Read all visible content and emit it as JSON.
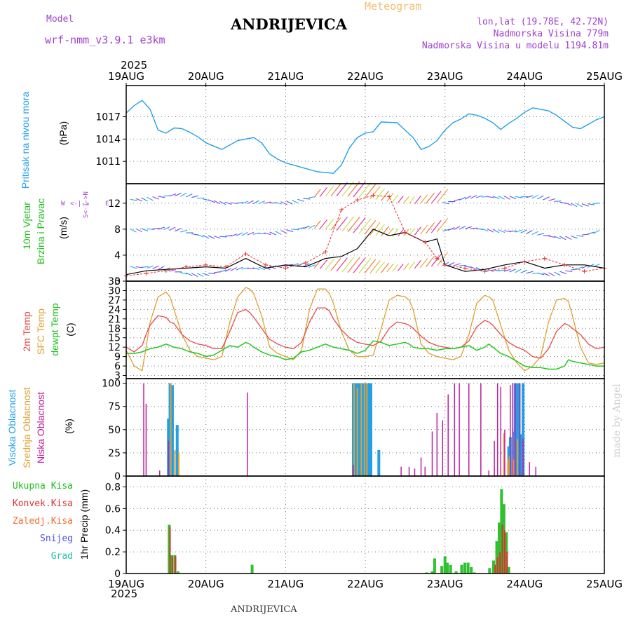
{
  "header": {
    "model_label": "Model",
    "model_name": "wrf-nmm_v3.9.1 e3km",
    "title": "ANDRIJEVICA",
    "meteogram_label": "Meteogram",
    "coords": "lon,lat (19.78E, 42.72N)",
    "elevation": "Nadmorska Visina 779m",
    "model_elevation": "Nadmorska Visina u modelu 1194.81m",
    "footer_title": "ANDRIJEVICA",
    "credit": "made by Angel"
  },
  "colors": {
    "pressure": "#22a0e8",
    "temp2m": "#e84848",
    "sfc_temp": "#e0a030",
    "dewpoint": "#20c820",
    "high_cloud": "#20a0e8",
    "mid_cloud": "#e0a030",
    "low_cloud": "#c020a0",
    "precip_total": "#30c030",
    "precip_conv": "#e03030"
  },
  "time_axis": {
    "year": "2025",
    "labels": [
      "19AUG",
      "20AUG",
      "21AUG",
      "22AUG",
      "23AUG",
      "24AUG",
      "25AUG"
    ]
  },
  "chart_data": [
    {
      "type": "line",
      "panel": "pressure",
      "ylabel_main": "Pritisak na nivou mora",
      "ylabel_unit": "(hPa)",
      "ylim": [
        1008,
        1021.2
      ],
      "yticks": [
        1011,
        1014,
        1017
      ],
      "x": [
        0,
        0.1,
        0.2,
        0.3,
        0.4,
        0.5,
        0.6,
        0.7,
        0.8,
        0.9,
        1.0,
        1.2,
        1.4,
        1.6,
        1.7,
        1.8,
        1.9,
        2.0,
        2.2,
        2.4,
        2.5,
        2.6,
        2.7,
        2.8,
        2.9,
        3.0,
        3.1,
        3.2,
        3.4,
        3.6,
        3.7,
        3.8,
        3.9,
        4.0,
        4.1,
        4.2,
        4.3,
        4.4,
        4.5,
        4.6,
        4.7,
        4.8,
        4.9,
        5.0,
        5.1,
        5.2,
        5.3,
        5.4,
        5.6,
        5.7,
        5.8,
        5.9,
        6.0
      ],
      "values": [
        1017.5,
        1018.5,
        1019.2,
        1018.0,
        1015.2,
        1014.8,
        1015.5,
        1015.4,
        1014.9,
        1014.3,
        1013.5,
        1012.6,
        1013.8,
        1014.2,
        1013.5,
        1012.0,
        1011.3,
        1010.8,
        1010.2,
        1009.6,
        1009.5,
        1009.4,
        1010.5,
        1012.8,
        1014.2,
        1014.8,
        1015.0,
        1016.3,
        1016.2,
        1014.2,
        1012.6,
        1013.0,
        1013.8,
        1015.2,
        1016.2,
        1016.7,
        1017.4,
        1017.2,
        1016.8,
        1016.2,
        1015.3,
        1016.1,
        1016.8,
        1017.6,
        1018.2,
        1018.0,
        1017.8,
        1017.2,
        1015.6,
        1015.4,
        1016.0,
        1016.6,
        1017.0
      ]
    },
    {
      "type": "line",
      "panel": "wind",
      "ylabel_main": "10m Vjetar",
      "ylabel_sub": "Brzina i Pravac",
      "ylabel_unit": "(m/s)",
      "compass_w": "W",
      "compass_e": "E",
      "compass_ns": "S<-|->N",
      "ylim": [
        0,
        15
      ],
      "yticks": [
        0,
        4,
        8,
        12
      ],
      "x": [
        0,
        0.25,
        0.5,
        0.75,
        1.0,
        1.25,
        1.5,
        1.75,
        2.0,
        2.25,
        2.5,
        2.7,
        2.9,
        3.1,
        3.3,
        3.5,
        3.75,
        3.9,
        4.0,
        4.25,
        4.5,
        4.75,
        5.0,
        5.25,
        5.5,
        5.75,
        6.0
      ],
      "series": [
        {
          "name": "wind_speed",
          "values": [
            1.0,
            1.6,
            1.8,
            2.0,
            2.2,
            2.0,
            3.5,
            2.0,
            2.5,
            2.2,
            3.5,
            3.8,
            5.0,
            8.0,
            7.0,
            7.5,
            6.0,
            6.5,
            2.5,
            1.5,
            1.8,
            2.5,
            3.0,
            2.0,
            2.5,
            2.5,
            2.0
          ]
        },
        {
          "name": "wind_gust",
          "values": [
            0.8,
            1.2,
            1.6,
            2.2,
            2.5,
            2.2,
            4.2,
            2.5,
            2.0,
            2.8,
            4.5,
            11.0,
            12.5,
            13.2,
            13.0,
            7.5,
            6.0,
            3.5,
            2.5,
            2.0,
            1.5,
            2.0,
            3.0,
            3.5,
            2.5,
            1.5,
            2.0
          ]
        }
      ]
    },
    {
      "type": "line",
      "panel": "temperature",
      "ylabel_2m": "2m Temp",
      "ylabel_sfc": "SFC Temp",
      "ylabel_dewpt": "dewpt Temp",
      "ylabel_unit": "(C)",
      "ylim": [
        2,
        33
      ],
      "yticks": [
        3,
        6,
        9,
        12,
        15,
        18,
        21,
        24,
        27,
        30,
        33
      ],
      "x": [
        0,
        0.1,
        0.2,
        0.25,
        0.3,
        0.4,
        0.5,
        0.55,
        0.6,
        0.7,
        0.8,
        0.9,
        1.0,
        1.1,
        1.2,
        1.3,
        1.4,
        1.5,
        1.55,
        1.6,
        1.7,
        1.8,
        1.9,
        2.0,
        2.1,
        2.2,
        2.3,
        2.4,
        2.5,
        2.55,
        2.6,
        2.7,
        2.8,
        2.9,
        3.0,
        3.1,
        3.2,
        3.3,
        3.4,
        3.5,
        3.55,
        3.6,
        3.7,
        3.8,
        3.9,
        4.0,
        4.1,
        4.2,
        4.3,
        4.4,
        4.5,
        4.55,
        4.6,
        4.7,
        4.8,
        4.9,
        5.0,
        5.1,
        5.2,
        5.3,
        5.4,
        5.5,
        5.55,
        5.6,
        5.7,
        5.8,
        5.9,
        6.0
      ],
      "series": [
        {
          "name": "2m Temp",
          "values": [
            12,
            10.5,
            12.5,
            16,
            19,
            22,
            21.5,
            20,
            19.5,
            16,
            14,
            13,
            12.5,
            11.5,
            11.5,
            17,
            23,
            24,
            23,
            21.5,
            18,
            14.5,
            13,
            12,
            11.5,
            13.5,
            20,
            24.5,
            24.5,
            23.5,
            21,
            17.5,
            15,
            13.5,
            13,
            12.5,
            14,
            18,
            20,
            19.5,
            19,
            18,
            15.5,
            13.5,
            12.5,
            12,
            11.5,
            12,
            14,
            18.5,
            20.5,
            20,
            19,
            16,
            13.5,
            12,
            11,
            9,
            8.5,
            11.5,
            17,
            19.5,
            19,
            18,
            16,
            13,
            11.5,
            12
          ]
        },
        {
          "name": "SFC Temp",
          "values": [
            11,
            6,
            4.5,
            12,
            20,
            28,
            29.5,
            28,
            24,
            16,
            11,
            9,
            8.5,
            8,
            9,
            20,
            28,
            31,
            30.5,
            29,
            22,
            12,
            10,
            9,
            8,
            11,
            24,
            30.5,
            30.5,
            29,
            26,
            17,
            11,
            9,
            9,
            9.5,
            18,
            27,
            28.5,
            28,
            27,
            24,
            13,
            10,
            9,
            8.5,
            8,
            9,
            16,
            26,
            28.5,
            28,
            27,
            19,
            11,
            7,
            4.5,
            6,
            9,
            20,
            27,
            27.5,
            26.5,
            22,
            12,
            7,
            6.5,
            7
          ]
        },
        {
          "name": "dewpt Temp",
          "values": [
            10,
            10,
            10.5,
            11,
            11.5,
            12,
            13,
            12.5,
            12,
            11.5,
            10.5,
            10,
            9,
            9.5,
            11,
            12.5,
            12,
            13.5,
            13,
            12,
            10.5,
            9.5,
            9,
            8,
            8.5,
            10.5,
            11,
            12,
            13,
            12.5,
            12,
            11.5,
            11,
            10,
            11,
            14,
            13.5,
            12.5,
            13,
            13.5,
            13,
            12,
            11.5,
            11.5,
            11,
            11.5,
            11.5,
            12,
            12.5,
            11,
            12,
            13,
            12,
            10,
            9,
            7.5,
            6,
            5.5,
            5.5,
            5,
            5,
            6,
            8,
            7.5,
            7,
            6.5,
            6,
            6
          ]
        }
      ]
    },
    {
      "type": "bar",
      "panel": "clouds",
      "ylabel_high": "Visoka Oblacnost",
      "ylabel_mid": "Srednja Oblacnost",
      "ylabel_low": "Niska Oblacnost",
      "ylabel_unit": "(%)",
      "ylim": [
        0,
        105
      ],
      "yticks": [
        0,
        25,
        50,
        75,
        100
      ],
      "series": [
        {
          "name": "high",
          "x": [
            0.53,
            0.55,
            0.58,
            0.64,
            2.85,
            2.88,
            2.91,
            2.94,
            2.97,
            3.0,
            3.04,
            3.07,
            3.17,
            4.8,
            4.82,
            4.86,
            4.88,
            4.9,
            4.93,
            4.96,
            4.98
          ],
          "values": [
            62,
            100,
            98,
            55,
            100,
            100,
            100,
            100,
            100,
            100,
            100,
            100,
            28,
            32,
            42,
            48,
            100,
            100,
            100,
            45,
            100
          ]
        },
        {
          "name": "mid",
          "x": [
            0.56,
            0.61,
            0.66,
            2.86,
            2.9,
            2.95,
            2.99,
            3.02,
            4.74,
            4.79,
            4.81,
            4.86,
            4.91
          ],
          "values": [
            100,
            28,
            26,
            100,
            95,
            100,
            100,
            100,
            46,
            18,
            22,
            18,
            40
          ]
        },
        {
          "name": "low",
          "x": [
            0.22,
            0.25,
            0.42,
            0.53,
            1.52,
            2.85,
            3.45,
            3.55,
            3.62,
            3.7,
            3.75,
            3.84,
            3.9,
            3.97,
            4.04,
            4.12,
            4.18,
            4.3,
            4.45,
            4.55,
            4.62,
            4.66,
            4.7,
            4.75,
            4.82,
            4.85,
            4.88,
            4.94,
            4.98,
            5.06,
            5.14
          ],
          "values": [
            100,
            78,
            6,
            38,
            90,
            12,
            10,
            10,
            8,
            20,
            10,
            48,
            68,
            60,
            88,
            100,
            100,
            100,
            100,
            6,
            38,
            100,
            96,
            50,
            98,
            100,
            100,
            100,
            40,
            15,
            10
          ]
        }
      ]
    },
    {
      "type": "bar",
      "panel": "precipitation",
      "legend_total": "Ukupna Kisa",
      "legend_conv": "Konvek.Kisa",
      "legend_freeze": "Zaledj.Kisa",
      "legend_snow": "Snijeg",
      "legend_hail": "Grad",
      "ylabel_unit": "1hr Precip (mm)",
      "ylim": [
        0,
        0.9
      ],
      "yticks": [
        0,
        0.2,
        0.4,
        0.6,
        0.8
      ],
      "series": [
        {
          "name": "total",
          "x": [
            0.54,
            0.57,
            0.61,
            0.65,
            1.58,
            3.77,
            3.84,
            3.87,
            3.96,
            4.0,
            4.03,
            4.07,
            4.14,
            4.21,
            4.25,
            4.29,
            4.33,
            4.37,
            4.56,
            4.61,
            4.65,
            4.68,
            4.71,
            4.74,
            4.77,
            4.8
          ],
          "values": [
            0.45,
            0.17,
            0.17,
            0.02,
            0.08,
            0.01,
            0.02,
            0.14,
            0.07,
            0.16,
            0.1,
            0.08,
            0.02,
            0.08,
            0.1,
            0.1,
            0.06,
            0.01,
            0.05,
            0.12,
            0.3,
            0.47,
            0.78,
            0.64,
            0.38,
            0.06
          ]
        },
        {
          "name": "convective",
          "x": [
            0.55,
            0.58,
            0.62,
            4.63,
            4.66,
            4.69,
            4.72,
            4.75,
            4.78
          ],
          "values": [
            0.43,
            0.16,
            0.16,
            0.08,
            0.15,
            0.2,
            0.45,
            0.4,
            0.2
          ]
        }
      ]
    }
  ]
}
